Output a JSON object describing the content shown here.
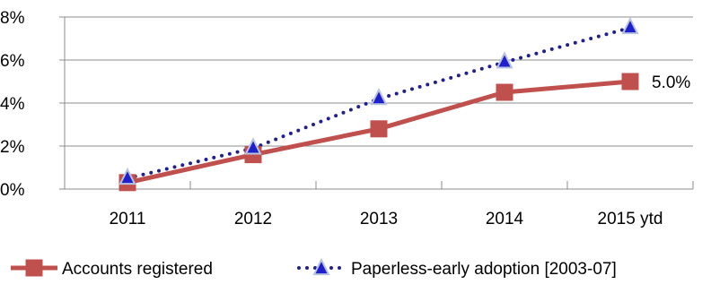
{
  "chart_data": {
    "type": "line",
    "categories": [
      "2011",
      "2012",
      "2013",
      "2014",
      "2015 ytd"
    ],
    "ylim": [
      0,
      8
    ],
    "yticks": [
      0,
      2,
      4,
      6,
      8
    ],
    "ytick_labels": [
      "0%",
      "2%",
      "4%",
      "6%",
      "8%"
    ],
    "grid": "horizontal",
    "legend_position": "bottom",
    "series": [
      {
        "name": "Accounts registered",
        "values": [
          0.3,
          1.6,
          2.8,
          4.5,
          5.0
        ],
        "color": "#C0504D",
        "line_style": "solid",
        "marker": "square",
        "point_labels": [
          "",
          "",
          "",
          "",
          "5.0%"
        ]
      },
      {
        "name": "Paperless-early adoption [2003-07]",
        "values": [
          0.5,
          1.9,
          4.2,
          5.9,
          7.5
        ],
        "color": "#1F1F8F",
        "line_style": "dotted",
        "marker": "triangle",
        "marker_fill": "#1F1FCC",
        "marker_edge": "#B8C4E0",
        "point_labels": [
          "",
          "",
          "",
          "",
          ""
        ]
      }
    ]
  }
}
